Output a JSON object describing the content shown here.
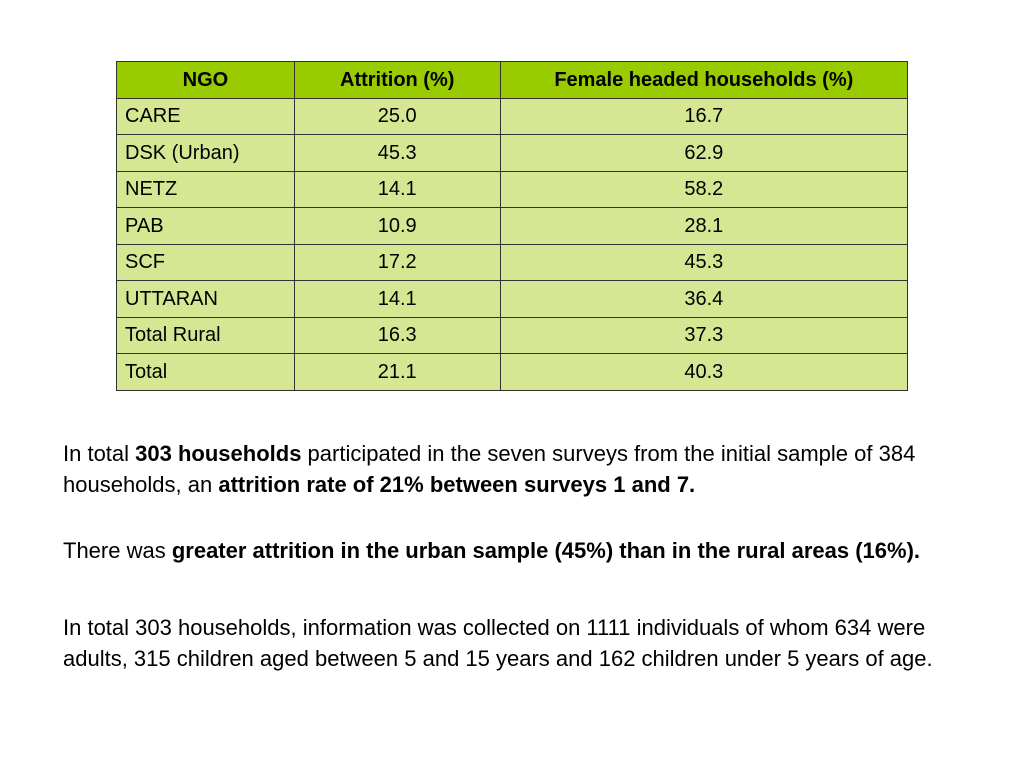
{
  "table": {
    "headers": [
      "NGO",
      "Attrition (%)",
      "Female headed households (%)"
    ],
    "rows": [
      {
        "ngo": "CARE",
        "attrition": "25.0",
        "female_headed": "16.7"
      },
      {
        "ngo": "DSK (Urban)",
        "attrition": "45.3",
        "female_headed": "62.9"
      },
      {
        "ngo": "NETZ",
        "attrition": "14.1",
        "female_headed": "58.2"
      },
      {
        "ngo": "PAB",
        "attrition": "10.9",
        "female_headed": "28.1"
      },
      {
        "ngo": "SCF",
        "attrition": "17.2",
        "female_headed": "45.3"
      },
      {
        "ngo": "UTTARAN",
        "attrition": "14.1",
        "female_headed": "36.4"
      },
      {
        "ngo": "Total Rural",
        "attrition": "16.3",
        "female_headed": "37.3"
      },
      {
        "ngo": "Total",
        "attrition": "21.1",
        "female_headed": "40.3"
      }
    ],
    "header_color": "#99cc00",
    "row_color": "#d6e793"
  },
  "paragraphs": {
    "p1": {
      "t1": "In total ",
      "b1": "303 households",
      "t2": " participated in the seven surveys from the initial sample of 384 households, an ",
      "b2": "attrition rate of 21% between surveys 1 and 7."
    },
    "p2": {
      "t1": "There was ",
      "b1": "greater attrition in the urban sample (45%) than in the rural areas (16%)."
    },
    "p3": {
      "t1": "In total 303 households, information was collected on 1111 individuals of whom 634 were adults, 315 children aged between 5 and 15 years and 162 children under 5 years of age."
    }
  }
}
